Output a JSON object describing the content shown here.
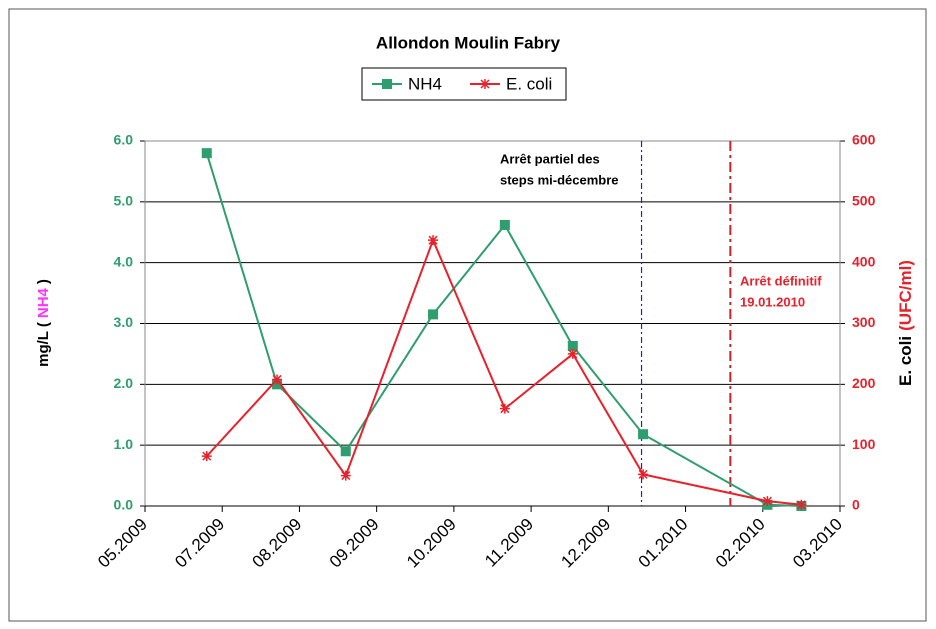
{
  "chart_data": {
    "type": "line",
    "title": "Allondon Moulin Fabry",
    "y_label_parts": [
      "mg/L (",
      "NH4",
      ")"
    ],
    "y2_label_parts": [
      "E. coli",
      "(UFC/ml)"
    ],
    "xlim": [
      0,
      9
    ],
    "xticks": [
      {
        "value": 0,
        "label": "05.2009"
      },
      {
        "value": 1,
        "label": "07.2009"
      },
      {
        "value": 2,
        "label": "08.2009"
      },
      {
        "value": 3,
        "label": "09.2009"
      },
      {
        "value": 4,
        "label": "10.2009"
      },
      {
        "value": 5,
        "label": "11.2009"
      },
      {
        "value": 6,
        "label": "12.2009"
      },
      {
        "value": 7,
        "label": "01.2010"
      },
      {
        "value": 8,
        "label": "02.2010"
      },
      {
        "value": 9,
        "label": "03.2010"
      }
    ],
    "ylim": [
      0,
      6
    ],
    "yticks": [
      {
        "value": 0,
        "label": "0.0"
      },
      {
        "value": 1,
        "label": "1.0"
      },
      {
        "value": 2,
        "label": "2.0"
      },
      {
        "value": 3,
        "label": "3.0"
      },
      {
        "value": 4,
        "label": "4.0"
      },
      {
        "value": 5,
        "label": "5.0"
      },
      {
        "value": 6,
        "label": "6.0"
      }
    ],
    "y2lim": [
      0,
      600
    ],
    "y2ticks": [
      0,
      100,
      200,
      300,
      400,
      500,
      600
    ],
    "grid": true,
    "legend": "top",
    "x": [
      0.8,
      1.71,
      2.6,
      3.73,
      4.66,
      5.54,
      6.45,
      8.06,
      8.5
    ],
    "series": [
      {
        "name": "NH4",
        "color": "#2e9e6e",
        "marker": "square",
        "values": [
          5.8,
          2.0,
          0.9,
          3.15,
          4.62,
          2.63,
          1.18,
          0.02,
          0.0
        ]
      },
      {
        "name": "E. coli",
        "color": "#e8212b",
        "marker": "star",
        "axis": "y2",
        "values": [
          82,
          208,
          50,
          437,
          160,
          250,
          52,
          8,
          2
        ]
      }
    ],
    "vlines": [
      {
        "x": 6.43,
        "color": "#2a2a8a",
        "dash": "6 3 2 3"
      },
      {
        "x": 7.58,
        "color": "#d0202a",
        "dash": "10 4 3 4"
      }
    ],
    "annotations": [
      {
        "lines": [
          "Arrêt partiel des",
          "steps mi-décembre"
        ],
        "color": "#000000"
      },
      {
        "lines": [
          "Arrêt définitif",
          "19.01.2010"
        ],
        "color": "#e8212b"
      }
    ]
  }
}
